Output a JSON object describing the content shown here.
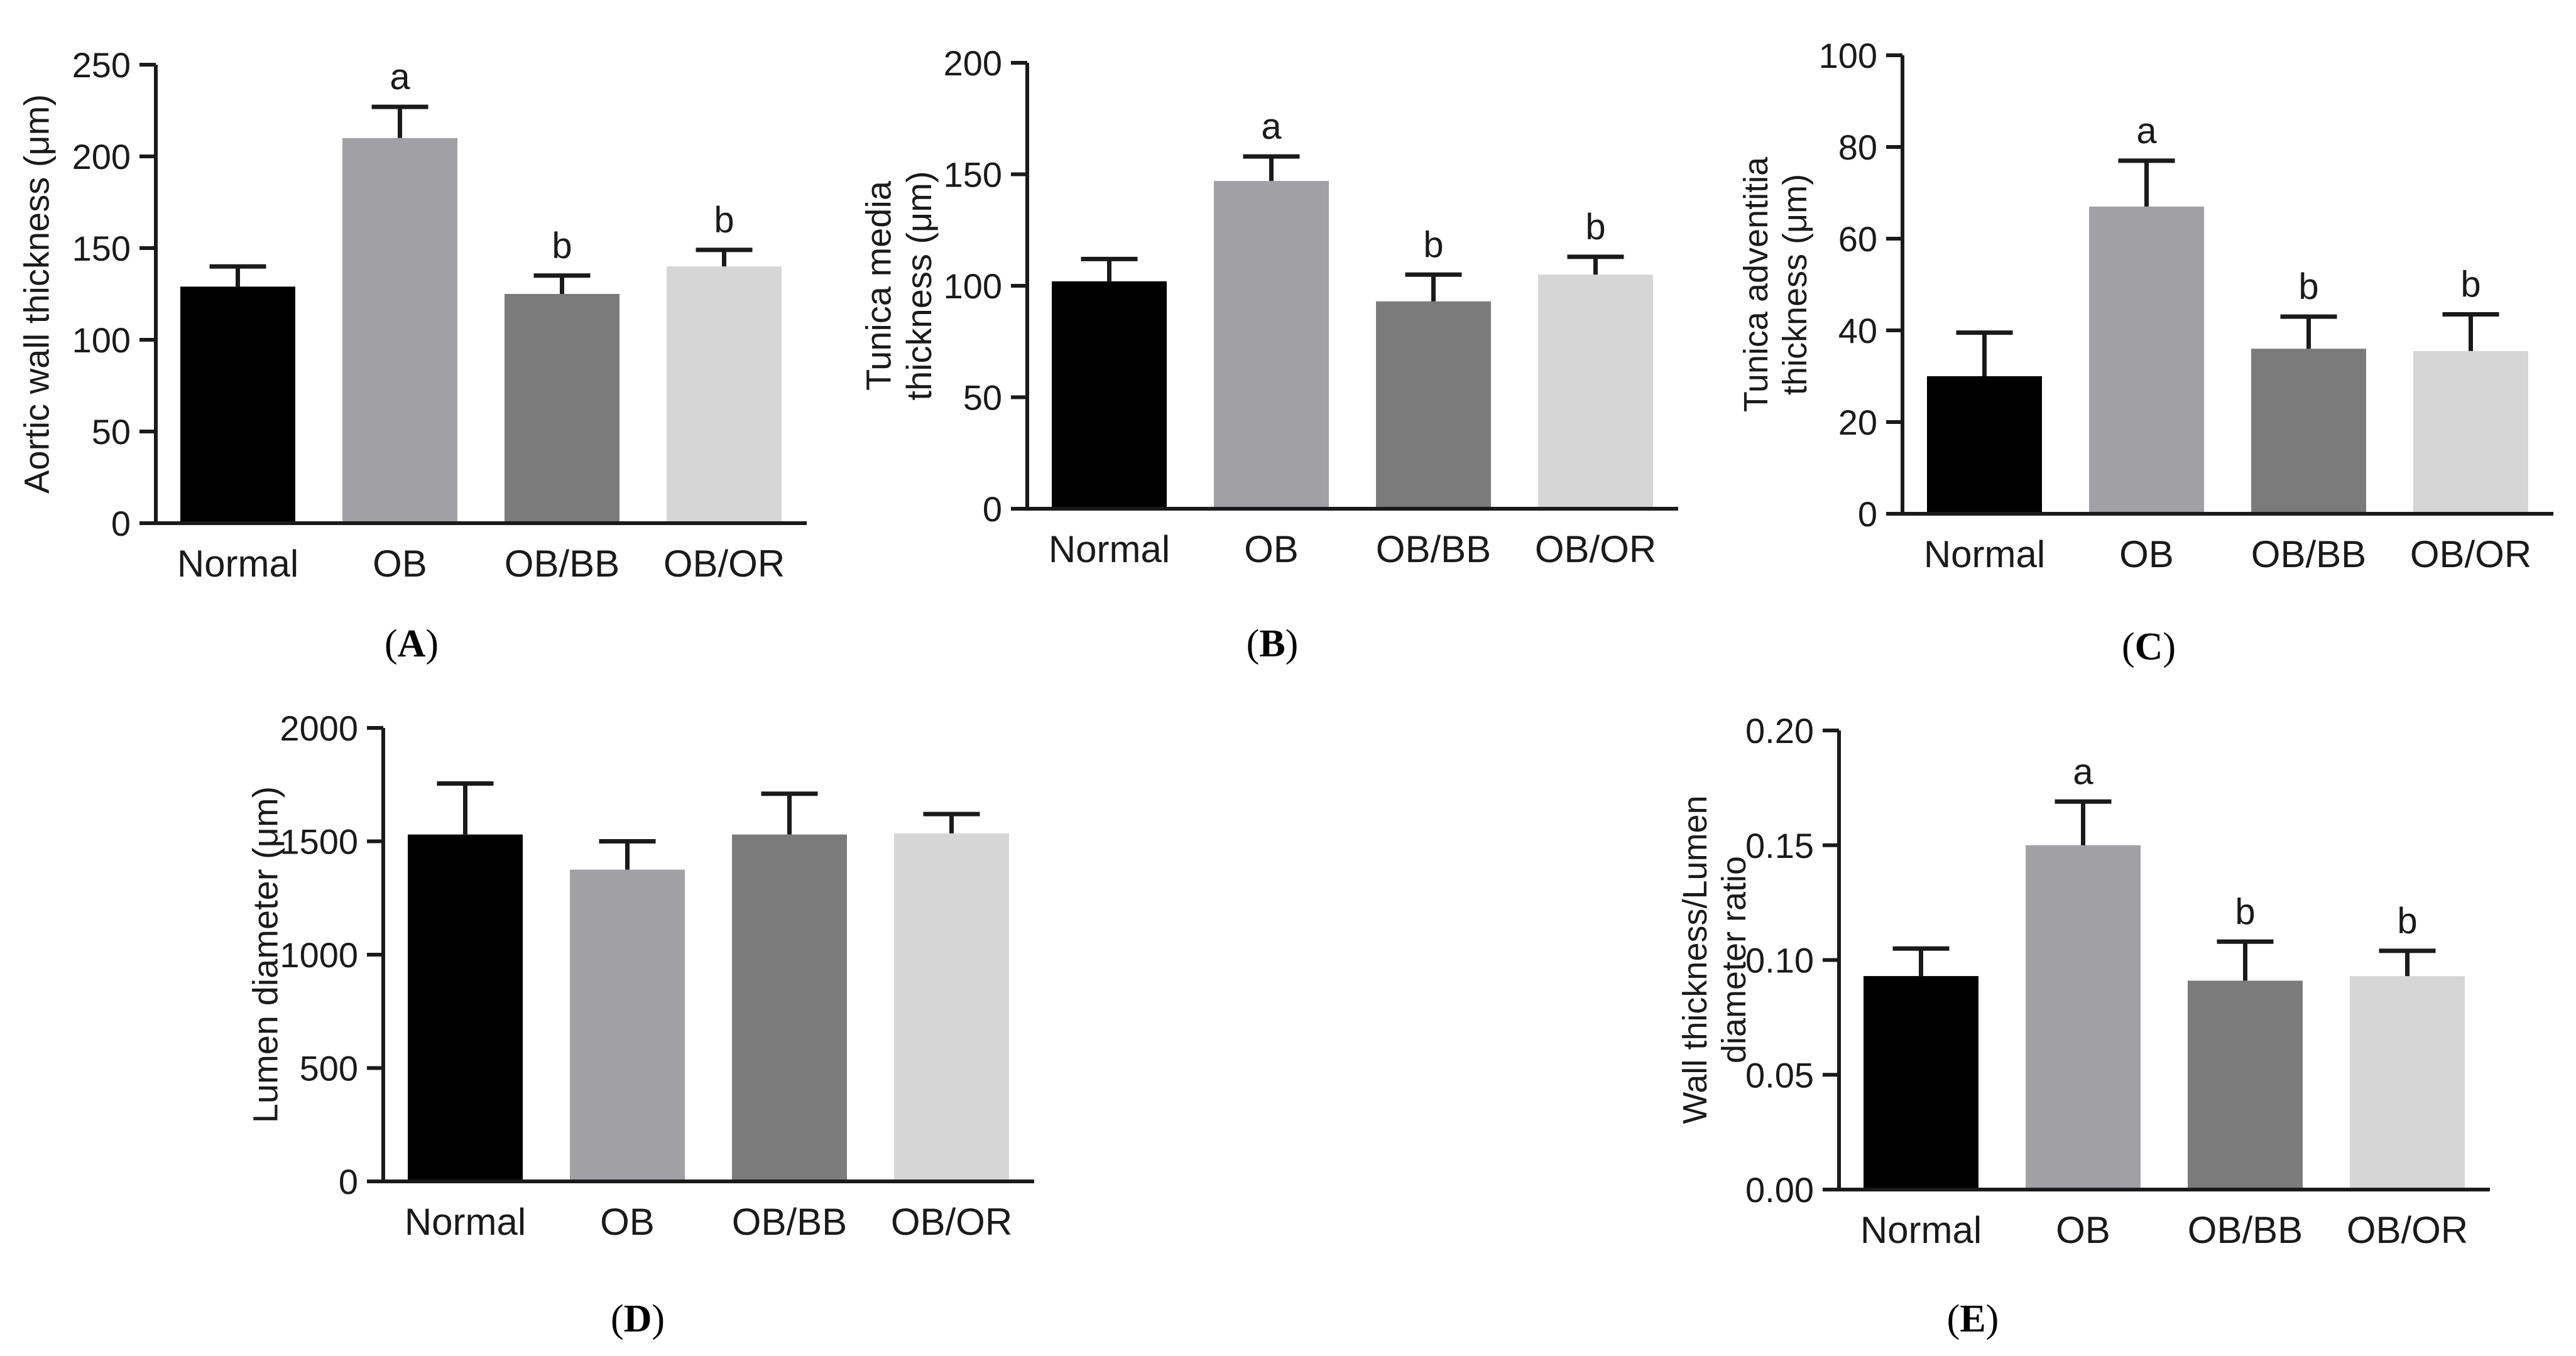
{
  "figure": {
    "panels": [
      {
        "id": "A",
        "label_open": "(",
        "label_letter": "A",
        "label_close": ")"
      },
      {
        "id": "B",
        "label_open": "(",
        "label_letter": "B",
        "label_close": ")"
      },
      {
        "id": "C",
        "label_open": "(",
        "label_letter": "C",
        "label_close": ")"
      },
      {
        "id": "D",
        "label_open": "(",
        "label_letter": "D",
        "label_close": ")"
      },
      {
        "id": "E",
        "label_open": "(",
        "label_letter": "E",
        "label_close": ")"
      }
    ]
  },
  "colors": {
    "Normal": "#000000",
    "OB": "#a0a0a5",
    "OB/BB": "#7b7b7b",
    "OB/OR": "#d6d6d6",
    "axis": "#1a1a1a"
  },
  "chart_data": [
    {
      "panel": "A",
      "type": "bar",
      "categories": [
        "Normal",
        "OB",
        "OB/BB",
        "OB/OR"
      ],
      "values": [
        129,
        210,
        125,
        140
      ],
      "errors": [
        11,
        17,
        10,
        9
      ],
      "annotations": [
        "",
        "a",
        "b",
        "b"
      ],
      "ylabel": "Aortic wall thickness (μm)",
      "ylabel_lines": [
        "Aortic wall thickness (μm)"
      ],
      "ylim": [
        0,
        250
      ],
      "yticks": [
        0,
        50,
        100,
        150,
        200,
        250
      ],
      "ytick_labels": [
        "0",
        "50",
        "100",
        "150",
        "200",
        "250"
      ]
    },
    {
      "panel": "B",
      "type": "bar",
      "categories": [
        "Normal",
        "OB",
        "OB/BB",
        "OB/OR"
      ],
      "values": [
        102,
        147,
        93,
        105
      ],
      "errors": [
        10,
        11,
        12,
        8
      ],
      "annotations": [
        "",
        "a",
        "b",
        "b"
      ],
      "ylabel": "Tunica media thickness (μm)",
      "ylabel_lines": [
        "Tunica media",
        "thickness (μm)"
      ],
      "ylim": [
        0,
        200
      ],
      "yticks": [
        0,
        50,
        100,
        150,
        200
      ],
      "ytick_labels": [
        "0",
        "50",
        "100",
        "150",
        "200"
      ]
    },
    {
      "panel": "C",
      "type": "bar",
      "categories": [
        "Normal",
        "OB",
        "OB/BB",
        "OB/OR"
      ],
      "values": [
        30,
        67,
        36,
        35.5
      ],
      "errors": [
        9.5,
        10,
        7,
        8
      ],
      "annotations": [
        "",
        "a",
        "b",
        "b"
      ],
      "ylabel": "Tunica adventitia thickness (μm)",
      "ylabel_lines": [
        "Tunica adventitia",
        "thickness (μm)"
      ],
      "ylim": [
        0,
        100
      ],
      "yticks": [
        0,
        20,
        40,
        60,
        80,
        100
      ],
      "ytick_labels": [
        "0",
        "20",
        "40",
        "60",
        "80",
        "100"
      ]
    },
    {
      "panel": "D",
      "type": "bar",
      "categories": [
        "Normal",
        "OB",
        "OB/BB",
        "OB/OR"
      ],
      "values": [
        1530,
        1375,
        1530,
        1535
      ],
      "errors": [
        225,
        125,
        180,
        85
      ],
      "annotations": [
        "",
        "",
        "",
        ""
      ],
      "ylabel": "Lumen diameter (μm)",
      "ylabel_lines": [
        "Lumen diameter (μm)"
      ],
      "ylim": [
        0,
        2000
      ],
      "yticks": [
        0,
        500,
        1000,
        1500,
        2000
      ],
      "ytick_labels": [
        "0",
        "500",
        "1000",
        "1500",
        "2000"
      ]
    },
    {
      "panel": "E",
      "type": "bar",
      "categories": [
        "Normal",
        "OB",
        "OB/BB",
        "OB/OR"
      ],
      "values": [
        0.093,
        0.15,
        0.091,
        0.093
      ],
      "errors": [
        0.012,
        0.019,
        0.017,
        0.011
      ],
      "annotations": [
        "",
        "a",
        "b",
        "b"
      ],
      "ylabel": "Wall thickness/Lumen diameter ratio",
      "ylabel_lines": [
        "Wall thickness/Lumen",
        "diameter ratio"
      ],
      "ylim": [
        0,
        0.2
      ],
      "yticks": [
        0,
        0.05,
        0.1,
        0.15,
        0.2
      ],
      "ytick_labels": [
        "0.00",
        "0.05",
        "0.10",
        "0.15",
        "0.20"
      ]
    }
  ]
}
